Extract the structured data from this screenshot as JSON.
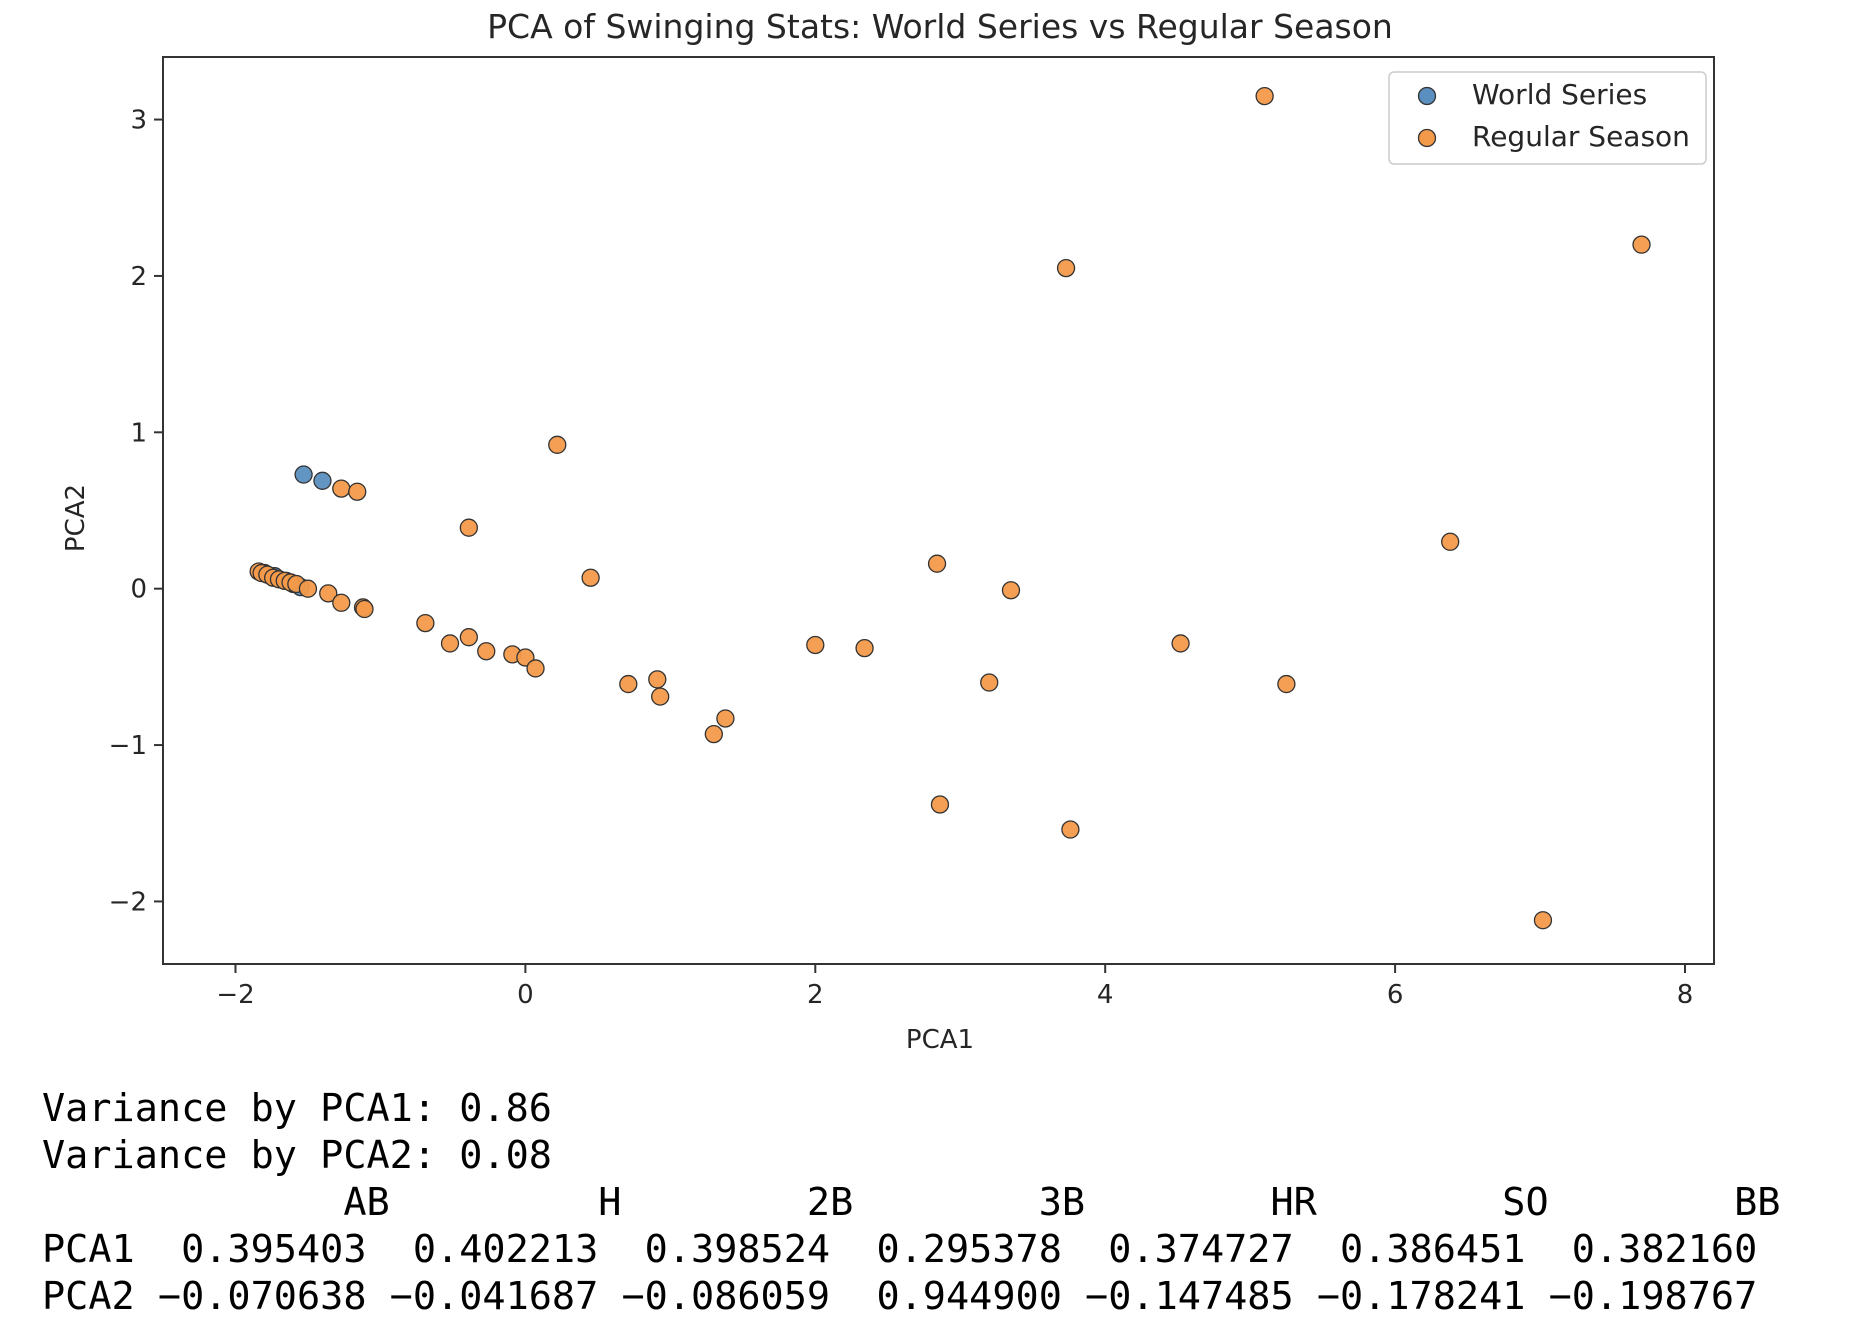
{
  "chart_data": {
    "type": "scatter",
    "title": "PCA of Swinging Stats: World Series vs Regular Season",
    "xlabel": "PCA1",
    "ylabel": "PCA2",
    "xlim": [
      -2.5,
      8.2
    ],
    "ylim": [
      -2.4,
      3.4
    ],
    "xticks": [
      -2,
      0,
      2,
      4,
      6,
      8
    ],
    "xtick_labels": [
      "−2",
      "0",
      "2",
      "4",
      "6",
      "8"
    ],
    "yticks": [
      -2,
      -1,
      0,
      1,
      2,
      3
    ],
    "ytick_labels": [
      "−2",
      "−1",
      "0",
      "1",
      "2",
      "3"
    ],
    "grid": false,
    "legend_position": "top-right",
    "series": [
      {
        "name": "World Series",
        "color": "#5b8fbf",
        "points": [
          [
            -1.53,
            0.73
          ],
          [
            -1.4,
            0.69
          ],
          [
            -1.8,
            0.1
          ],
          [
            -1.73,
            0.08
          ],
          [
            -1.65,
            0.05
          ],
          [
            -1.6,
            0.03
          ],
          [
            -1.55,
            0.01
          ]
        ]
      },
      {
        "name": "Regular Season",
        "color": "#f39a4a",
        "points": [
          [
            5.1,
            3.15
          ],
          [
            7.7,
            2.2
          ],
          [
            3.73,
            2.05
          ],
          [
            0.22,
            0.92
          ],
          [
            -1.27,
            0.64
          ],
          [
            -1.16,
            0.62
          ],
          [
            -0.39,
            0.39
          ],
          [
            6.38,
            0.3
          ],
          [
            2.84,
            0.16
          ],
          [
            0.45,
            0.07
          ],
          [
            3.35,
            -0.01
          ],
          [
            -1.84,
            0.11
          ],
          [
            -1.82,
            0.1
          ],
          [
            -1.78,
            0.09
          ],
          [
            -1.74,
            0.07
          ],
          [
            -1.7,
            0.06
          ],
          [
            -1.66,
            0.05
          ],
          [
            -1.62,
            0.04
          ],
          [
            -1.58,
            0.03
          ],
          [
            -1.5,
            0.0
          ],
          [
            -1.36,
            -0.03
          ],
          [
            -1.27,
            -0.09
          ],
          [
            -1.12,
            -0.12
          ],
          [
            -1.11,
            -0.13
          ],
          [
            -0.69,
            -0.22
          ],
          [
            -0.52,
            -0.35
          ],
          [
            -0.39,
            -0.31
          ],
          [
            -0.27,
            -0.4
          ],
          [
            -0.09,
            -0.42
          ],
          [
            0.0,
            -0.44
          ],
          [
            0.07,
            -0.51
          ],
          [
            2.0,
            -0.36
          ],
          [
            2.34,
            -0.38
          ],
          [
            4.52,
            -0.35
          ],
          [
            0.71,
            -0.61
          ],
          [
            0.91,
            -0.58
          ],
          [
            0.93,
            -0.69
          ],
          [
            3.2,
            -0.6
          ],
          [
            5.25,
            -0.61
          ],
          [
            1.38,
            -0.83
          ],
          [
            1.3,
            -0.93
          ],
          [
            2.86,
            -1.38
          ],
          [
            3.76,
            -1.54
          ],
          [
            7.02,
            -2.12
          ]
        ]
      }
    ]
  },
  "output": {
    "lines": [
      "Variance by PCA1: 0.86",
      "Variance by PCA2: 0.08",
      "             AB         H        2B        3B        HR        SO        BB",
      "PCA1  0.395403  0.402213  0.398524  0.295378  0.374727  0.386451  0.382160",
      "PCA2 −0.070638 −0.041687 −0.086059  0.944900 −0.147485 −0.178241 −0.198767"
    ]
  }
}
